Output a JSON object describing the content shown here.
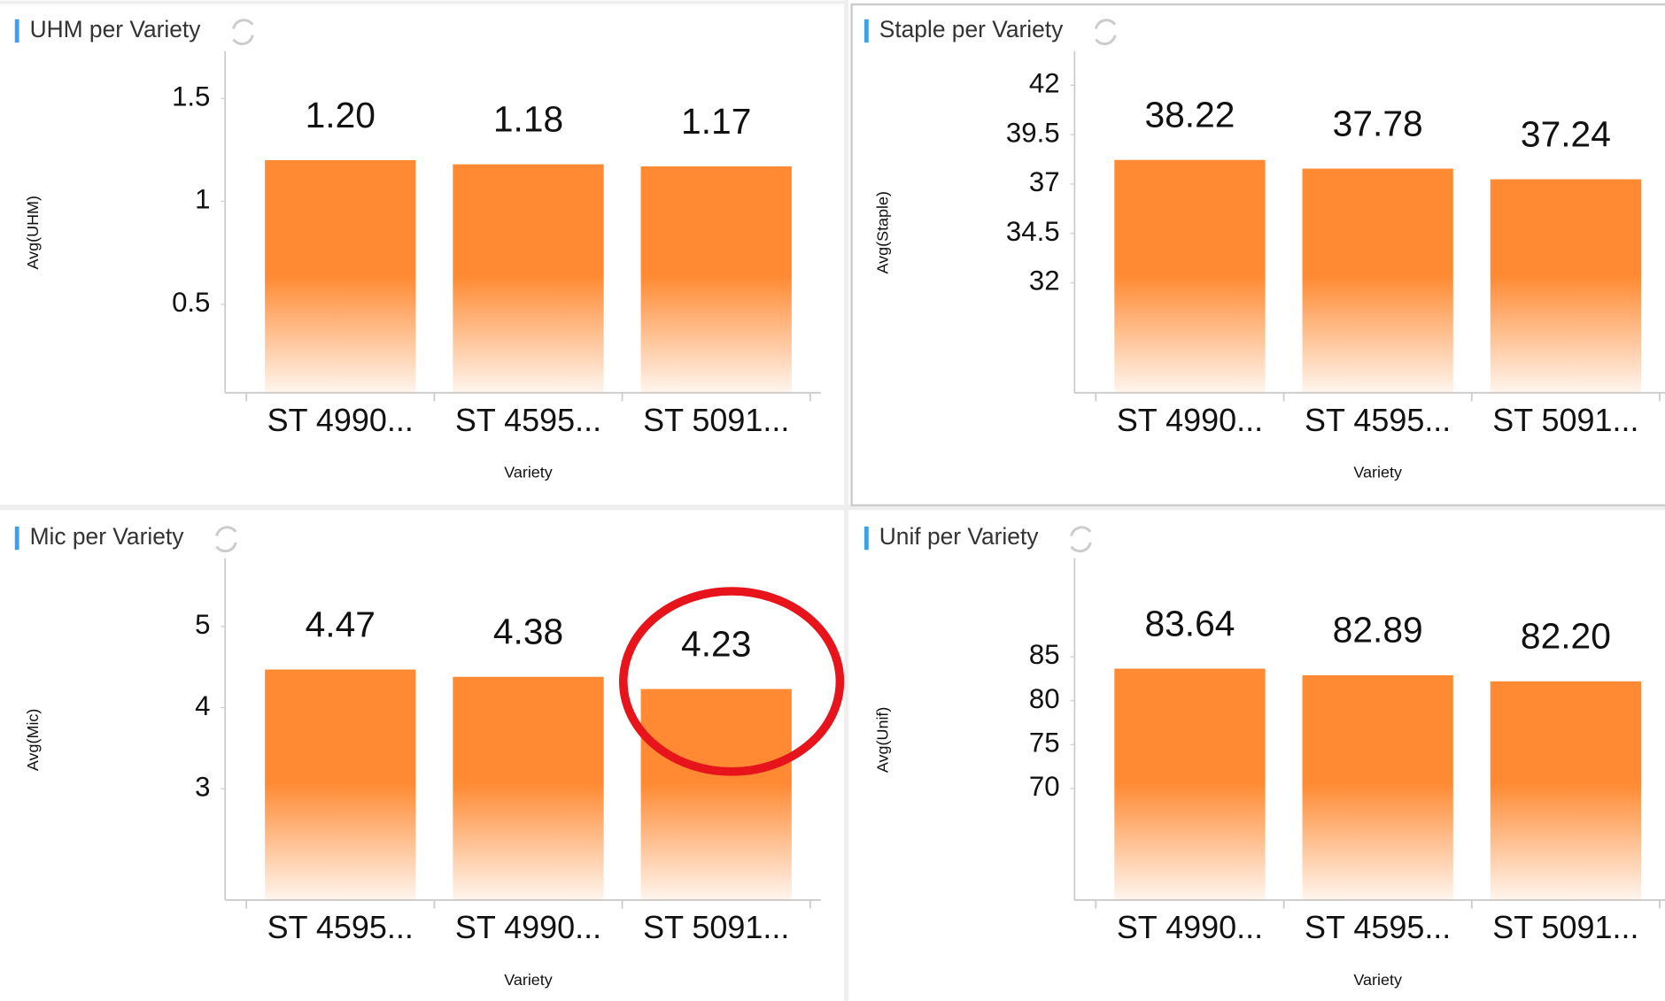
{
  "chart_data": [
    {
      "type": "bar",
      "title": "UHM per Variety",
      "ylabel": "Avg(UHM)",
      "xlabel": "Variety",
      "categories": [
        "ST 4990...",
        "ST 4595...",
        "ST 5091..."
      ],
      "values": [
        1.2,
        1.18,
        1.17
      ],
      "value_labels": [
        "1.20",
        "1.18",
        "1.17"
      ],
      "ylim": [
        0.07,
        1.73
      ],
      "yticks": [
        0.5,
        1,
        1.5
      ],
      "color": "#ff8a33"
    },
    {
      "type": "bar",
      "title": "Staple per Variety",
      "ylabel": "Avg(Staple)",
      "xlabel": "Variety",
      "categories": [
        "ST 4990...",
        "ST 4595...",
        "ST 5091..."
      ],
      "values": [
        38.22,
        37.78,
        37.24
      ],
      "value_labels": [
        "38.22",
        "37.78",
        "37.24"
      ],
      "ylim": [
        26.43,
        43.73
      ],
      "yticks": [
        32,
        34.5,
        37,
        39.5,
        42
      ],
      "color": "#ff8a33"
    },
    {
      "type": "bar",
      "title": "Mic per Variety",
      "ylabel": "Avg(Mic)",
      "xlabel": "Variety",
      "categories": [
        "ST 4595...",
        "ST 4990...",
        "ST 5091..."
      ],
      "values": [
        4.47,
        4.38,
        4.23
      ],
      "value_labels": [
        "4.47",
        "4.38",
        "4.23"
      ],
      "ylim": [
        1.63,
        5.84
      ],
      "yticks": [
        3,
        4,
        5
      ],
      "color": "#ff8a33"
    },
    {
      "type": "bar",
      "title": "Unif per Variety",
      "ylabel": "Avg(Unif)",
      "xlabel": "Variety",
      "categories": [
        "ST 4990...",
        "ST 4595...",
        "ST 5091..."
      ],
      "values": [
        83.64,
        82.89,
        82.2
      ],
      "value_labels": [
        "83.64",
        "82.89",
        "82.20"
      ],
      "ylim": [
        57.3,
        96.2
      ],
      "yticks": [
        70,
        75,
        80,
        85
      ],
      "color": "#ff8a33"
    }
  ]
}
